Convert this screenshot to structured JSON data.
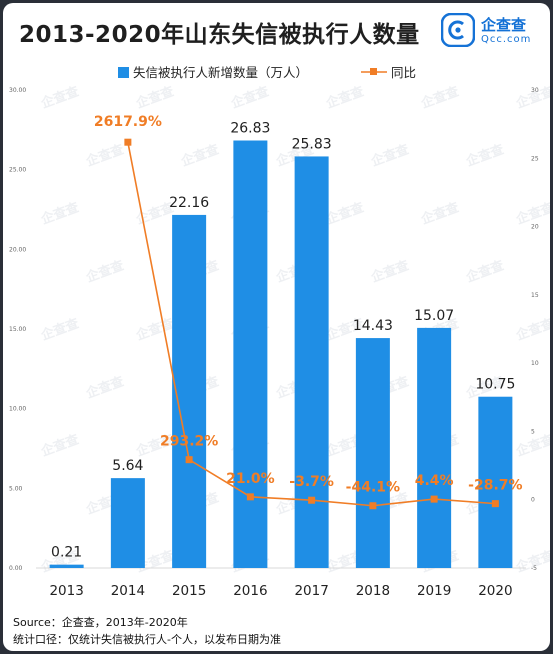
{
  "title": "2013-2020年山东失信被执行人数量",
  "logo": {
    "name": "企查查",
    "sub": "Qcc.com",
    "brand_color": "#1572d6"
  },
  "footer": {
    "source": "Source：企查查，2013年-2020年",
    "note": "统计口径：仅统计失信被执行人-个人，以发布日期为准"
  },
  "colors": {
    "bar": "#1f8ee5",
    "line": "#f07d26",
    "line_label": "#f07d26"
  },
  "chart_data": {
    "type": "bar",
    "categories": [
      "2013",
      "2014",
      "2015",
      "2016",
      "2017",
      "2018",
      "2019",
      "2020"
    ],
    "series": [
      {
        "name": "失信被执行人新增数量（万人）",
        "type": "bar",
        "axis": "left",
        "values": [
          0.21,
          5.64,
          22.16,
          26.83,
          25.83,
          14.43,
          15.07,
          10.75
        ],
        "labels": [
          "0.21",
          "5.64",
          "22.16",
          "26.83",
          "25.83",
          "14.43",
          "15.07",
          "10.75"
        ]
      },
      {
        "name": "同比",
        "type": "line",
        "axis": "right",
        "values": [
          null,
          26.179,
          2.932,
          0.21,
          -0.037,
          -0.441,
          0.044,
          -0.287
        ],
        "labels": [
          "",
          "2617.9%",
          "293.2%",
          "21.0%",
          "-3.7%",
          "-44.1%",
          "4.4%",
          "-28.7%"
        ]
      }
    ],
    "y_left": {
      "min": 0,
      "max": 30,
      "ticks": [
        "0.00",
        "5.00",
        "10.00",
        "15.00",
        "20.00",
        "25.00",
        "30.00"
      ]
    },
    "y_right": {
      "min": -5,
      "max": 30,
      "ticks": [
        "-5",
        "0",
        "5",
        "10",
        "15",
        "20",
        "25",
        "30"
      ]
    },
    "legend_position": "top-center",
    "grid": false
  }
}
